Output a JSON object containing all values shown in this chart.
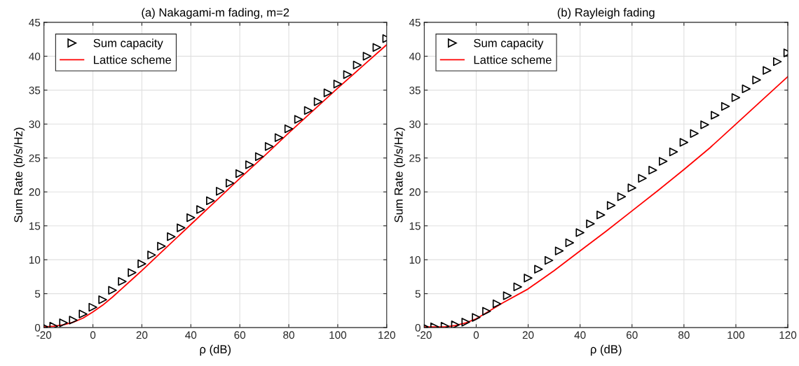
{
  "chart_data": [
    {
      "type": "line",
      "title": "(a) Nakagami-m fading, m=2",
      "xlabel": "ρ (dB)",
      "ylabel": "Sum Rate (b/s/Hz)",
      "xlim": [
        -20,
        120
      ],
      "xticks": [
        -20,
        0,
        20,
        40,
        60,
        80,
        100,
        120
      ],
      "ylim": [
        0,
        45
      ],
      "yticks": [
        0,
        5,
        10,
        15,
        20,
        25,
        30,
        35,
        40,
        45
      ],
      "grid": true,
      "legend": "top left",
      "series": [
        {
          "name": "Sum capacity",
          "type": "scatter",
          "marker": "triangle",
          "color": "#000000",
          "x": [
            -20,
            -16,
            -12,
            -8,
            -4,
            0,
            4,
            8,
            12,
            16,
            20,
            24,
            28,
            32,
            36,
            40,
            44,
            48,
            52,
            56,
            60,
            64,
            68,
            72,
            76,
            80,
            84,
            88,
            92,
            96,
            100,
            104,
            108,
            112,
            116,
            120
          ],
          "values": [
            0.1,
            0.2,
            0.7,
            1.1,
            2.0,
            3.0,
            4.1,
            5.5,
            6.8,
            8.1,
            9.4,
            10.7,
            12.0,
            13.4,
            14.7,
            16.2,
            17.4,
            18.7,
            20.1,
            21.3,
            22.7,
            24.0,
            25.2,
            26.7,
            28.0,
            29.3,
            30.7,
            32.0,
            33.3,
            34.6,
            35.9,
            37.3,
            38.7,
            40.0,
            41.3,
            42.6
          ]
        },
        {
          "name": "Lattice scheme",
          "type": "line",
          "marker": "none",
          "line_style": "solid",
          "color": "#ff0000",
          "x": [
            -20,
            -16,
            -12,
            -8,
            -4,
            0,
            4,
            8,
            12,
            16,
            20,
            30,
            40,
            50,
            60,
            70,
            80,
            90,
            100,
            110,
            120
          ],
          "values": [
            0.1,
            0.2,
            0.4,
            0.8,
            1.4,
            2.3,
            3.3,
            4.5,
            5.8,
            7.1,
            8.4,
            11.8,
            15.2,
            18.6,
            22.0,
            25.3,
            28.7,
            32.0,
            35.3,
            38.5,
            41.7
          ]
        }
      ]
    },
    {
      "type": "line",
      "title": "(b) Rayleigh fading",
      "xlabel": "ρ (dB)",
      "ylabel": "Sum Rate (b/s/Hz)",
      "xlim": [
        -20,
        120
      ],
      "xticks": [
        -20,
        0,
        20,
        40,
        60,
        80,
        100,
        120
      ],
      "ylim": [
        0,
        45
      ],
      "yticks": [
        0,
        5,
        10,
        15,
        20,
        25,
        30,
        35,
        40,
        45
      ],
      "grid": true,
      "legend": "top left",
      "series": [
        {
          "name": "Sum capacity",
          "type": "scatter",
          "marker": "triangle",
          "color": "#000000",
          "x": [
            -20,
            -16,
            -12,
            -8,
            -4,
            0,
            4,
            8,
            12,
            16,
            20,
            24,
            28,
            32,
            36,
            40,
            44,
            48,
            52,
            56,
            60,
            64,
            68,
            72,
            76,
            80,
            84,
            88,
            92,
            96,
            100,
            104,
            108,
            112,
            116,
            120
          ],
          "values": [
            0.1,
            0.1,
            0.2,
            0.4,
            0.8,
            1.5,
            2.4,
            3.5,
            4.7,
            6.0,
            7.3,
            8.6,
            9.9,
            11.3,
            12.5,
            14.0,
            15.3,
            16.6,
            18.0,
            19.3,
            20.6,
            22.0,
            23.2,
            24.5,
            25.9,
            27.3,
            28.6,
            29.9,
            31.3,
            32.6,
            33.9,
            35.2,
            36.5,
            37.9,
            39.2,
            40.5
          ]
        },
        {
          "name": "Lattice scheme",
          "type": "line",
          "marker": "none",
          "line_style": "solid",
          "color": "#ff0000",
          "x": [
            -20,
            -16,
            -12,
            -8,
            -4,
            0,
            4,
            10,
            20,
            30,
            40,
            50,
            60,
            70,
            80,
            90,
            100,
            110,
            120
          ],
          "values": [
            0.1,
            0.1,
            0.1,
            0.3,
            0.7,
            1.3,
            2.2,
            3.6,
            5.7,
            8.4,
            11.3,
            14.2,
            17.2,
            20.2,
            23.3,
            26.5,
            30.0,
            33.5,
            37.0
          ]
        }
      ]
    }
  ]
}
